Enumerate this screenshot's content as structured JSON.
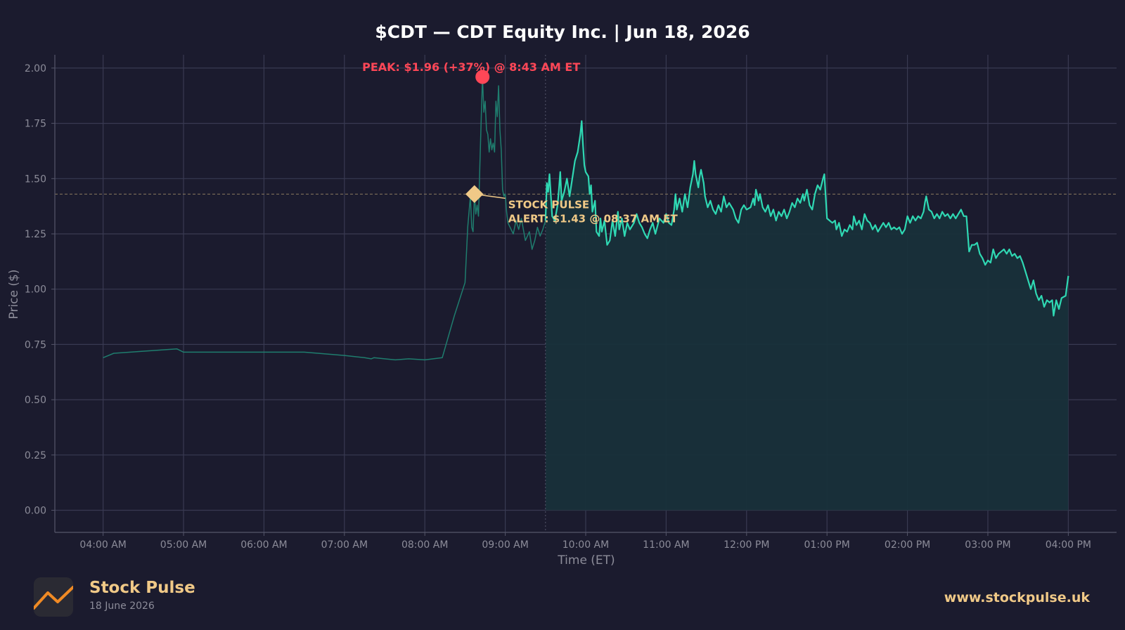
{
  "chart_data": {
    "type": "line",
    "title": "$CDT — CDT Equity Inc.  |  Jun 18, 2026",
    "xlabel": "Time (ET)",
    "ylabel": "Price ($)",
    "ylim": [
      -0.1,
      2.06
    ],
    "yticks": [
      0.0,
      0.25,
      0.5,
      0.75,
      1.0,
      1.25,
      1.5,
      1.75,
      2.0
    ],
    "ytick_labels": [
      "0.00",
      "0.25",
      "0.50",
      "0.75",
      "1.00",
      "1.25",
      "1.50",
      "1.75",
      "2.00"
    ],
    "xticks": [
      "04:00",
      "05:00",
      "06:00",
      "07:00",
      "08:00",
      "09:00",
      "10:00",
      "11:00",
      "12:00",
      "13:00",
      "14:00",
      "15:00",
      "16:00"
    ],
    "xtick_labels": [
      "04:00 AM",
      "05:00 AM",
      "06:00 AM",
      "07:00 AM",
      "08:00 AM",
      "09:00 AM",
      "10:00 AM",
      "11:00 AM",
      "12:00 PM",
      "01:00 PM",
      "02:00 PM",
      "03:00 PM",
      "04:00 PM"
    ],
    "xlim": [
      "03:24",
      "16:36"
    ],
    "grid": true,
    "market_open": "09:30",
    "series": [
      {
        "segment": "premarket",
        "color": "#1f7d6e",
        "points": [
          [
            "04:00",
            0.69
          ],
          [
            "04:08",
            0.71
          ],
          [
            "04:55",
            0.73
          ],
          [
            "05:00",
            0.715
          ],
          [
            "05:30",
            0.715
          ],
          [
            "06:00",
            0.715
          ],
          [
            "06:30",
            0.715
          ],
          [
            "07:00",
            0.7
          ],
          [
            "07:15",
            0.69
          ],
          [
            "07:20",
            0.685
          ],
          [
            "07:22",
            0.69
          ],
          [
            "07:30",
            0.685
          ],
          [
            "07:38",
            0.68
          ],
          [
            "07:48",
            0.685
          ],
          [
            "08:00",
            0.68
          ],
          [
            "08:13",
            0.69
          ],
          [
            "08:22",
            0.88
          ],
          [
            "08:30",
            1.03
          ],
          [
            "08:32",
            1.28
          ],
          [
            "08:34",
            1.42
          ],
          [
            "08:35",
            1.28
          ],
          [
            "08:36",
            1.26
          ],
          [
            "08:37",
            1.43
          ],
          [
            "08:38",
            1.34
          ],
          [
            "08:39",
            1.38
          ],
          [
            "08:40",
            1.33
          ],
          [
            "08:41",
            1.55
          ],
          [
            "08:42",
            1.76
          ],
          [
            "08:43",
            1.96
          ],
          [
            "08:44",
            1.8
          ],
          [
            "08:45",
            1.85
          ],
          [
            "08:46",
            1.72
          ],
          [
            "08:47",
            1.7
          ],
          [
            "08:48",
            1.62
          ],
          [
            "08:49",
            1.68
          ],
          [
            "08:50",
            1.63
          ],
          [
            "08:51",
            1.66
          ],
          [
            "08:52",
            1.62
          ],
          [
            "08:53",
            1.85
          ],
          [
            "08:54",
            1.78
          ],
          [
            "08:55",
            1.92
          ],
          [
            "08:56",
            1.72
          ],
          [
            "08:57",
            1.63
          ],
          [
            "08:58",
            1.45
          ],
          [
            "08:59",
            1.42
          ],
          [
            "09:00",
            1.43
          ],
          [
            "09:01",
            1.35
          ],
          [
            "09:02",
            1.3
          ],
          [
            "09:06",
            1.25
          ],
          [
            "09:08",
            1.31
          ],
          [
            "09:10",
            1.27
          ],
          [
            "09:12",
            1.32
          ],
          [
            "09:15",
            1.22
          ],
          [
            "09:18",
            1.26
          ],
          [
            "09:20",
            1.18
          ],
          [
            "09:22",
            1.22
          ],
          [
            "09:24",
            1.28
          ],
          [
            "09:26",
            1.24
          ],
          [
            "09:28",
            1.27
          ],
          [
            "09:30",
            1.31
          ]
        ]
      },
      {
        "segment": "regular",
        "color": "#2fd8b3",
        "points": [
          [
            "09:30",
            1.31
          ],
          [
            "09:31",
            1.48
          ],
          [
            "09:32",
            1.44
          ],
          [
            "09:33",
            1.52
          ],
          [
            "09:35",
            1.33
          ],
          [
            "09:37",
            1.31
          ],
          [
            "09:39",
            1.38
          ],
          [
            "09:40",
            1.45
          ],
          [
            "09:41",
            1.53
          ],
          [
            "09:42",
            1.4
          ],
          [
            "09:44",
            1.44
          ],
          [
            "09:46",
            1.5
          ],
          [
            "09:48",
            1.42
          ],
          [
            "09:50",
            1.5
          ],
          [
            "09:52",
            1.58
          ],
          [
            "09:54",
            1.62
          ],
          [
            "09:56",
            1.7
          ],
          [
            "09:57",
            1.76
          ],
          [
            "09:58",
            1.65
          ],
          [
            "09:59",
            1.56
          ],
          [
            "10:00",
            1.53
          ],
          [
            "10:02",
            1.51
          ],
          [
            "10:03",
            1.43
          ],
          [
            "10:04",
            1.47
          ],
          [
            "10:05",
            1.35
          ],
          [
            "10:07",
            1.4
          ],
          [
            "10:08",
            1.26
          ],
          [
            "10:10",
            1.24
          ],
          [
            "10:11",
            1.32
          ],
          [
            "10:12",
            1.26
          ],
          [
            "10:14",
            1.31
          ],
          [
            "10:16",
            1.2
          ],
          [
            "10:18",
            1.22
          ],
          [
            "10:20",
            1.31
          ],
          [
            "10:22",
            1.24
          ],
          [
            "10:24",
            1.35
          ],
          [
            "10:25",
            1.27
          ],
          [
            "10:27",
            1.32
          ],
          [
            "10:29",
            1.24
          ],
          [
            "10:31",
            1.3
          ],
          [
            "10:33",
            1.27
          ],
          [
            "10:36",
            1.3
          ],
          [
            "10:38",
            1.34
          ],
          [
            "10:40",
            1.3
          ],
          [
            "10:42",
            1.28
          ],
          [
            "10:44",
            1.25
          ],
          [
            "10:46",
            1.23
          ],
          [
            "10:48",
            1.27
          ],
          [
            "10:50",
            1.3
          ],
          [
            "10:52",
            1.25
          ],
          [
            "10:55",
            1.32
          ],
          [
            "10:58",
            1.3
          ],
          [
            "11:00",
            1.34
          ],
          [
            "11:02",
            1.3
          ],
          [
            "11:04",
            1.29
          ],
          [
            "11:06",
            1.36
          ],
          [
            "11:07",
            1.43
          ],
          [
            "11:08",
            1.36
          ],
          [
            "11:10",
            1.41
          ],
          [
            "11:12",
            1.35
          ],
          [
            "11:14",
            1.43
          ],
          [
            "11:16",
            1.37
          ],
          [
            "11:18",
            1.46
          ],
          [
            "11:20",
            1.52
          ],
          [
            "11:21",
            1.58
          ],
          [
            "11:22",
            1.52
          ],
          [
            "11:24",
            1.46
          ],
          [
            "11:25",
            1.51
          ],
          [
            "11:26",
            1.54
          ],
          [
            "11:28",
            1.48
          ],
          [
            "11:29",
            1.42
          ],
          [
            "11:31",
            1.37
          ],
          [
            "11:33",
            1.4
          ],
          [
            "11:35",
            1.36
          ],
          [
            "11:37",
            1.34
          ],
          [
            "11:39",
            1.38
          ],
          [
            "11:41",
            1.35
          ],
          [
            "11:43",
            1.42
          ],
          [
            "11:45",
            1.37
          ],
          [
            "11:47",
            1.39
          ],
          [
            "11:50",
            1.36
          ],
          [
            "11:52",
            1.32
          ],
          [
            "11:54",
            1.3
          ],
          [
            "11:56",
            1.36
          ],
          [
            "11:58",
            1.38
          ],
          [
            "12:00",
            1.36
          ],
          [
            "12:03",
            1.37
          ],
          [
            "12:05",
            1.41
          ],
          [
            "12:06",
            1.38
          ],
          [
            "12:07",
            1.45
          ],
          [
            "12:09",
            1.4
          ],
          [
            "12:10",
            1.43
          ],
          [
            "12:12",
            1.37
          ],
          [
            "12:14",
            1.35
          ],
          [
            "12:16",
            1.38
          ],
          [
            "12:18",
            1.33
          ],
          [
            "12:20",
            1.36
          ],
          [
            "12:22",
            1.31
          ],
          [
            "12:24",
            1.35
          ],
          [
            "12:26",
            1.33
          ],
          [
            "12:28",
            1.36
          ],
          [
            "12:30",
            1.32
          ],
          [
            "12:32",
            1.35
          ],
          [
            "12:34",
            1.39
          ],
          [
            "12:36",
            1.37
          ],
          [
            "12:38",
            1.41
          ],
          [
            "12:40",
            1.39
          ],
          [
            "12:42",
            1.43
          ],
          [
            "12:43",
            1.4
          ],
          [
            "12:45",
            1.45
          ],
          [
            "12:47",
            1.38
          ],
          [
            "12:49",
            1.36
          ],
          [
            "12:51",
            1.43
          ],
          [
            "12:53",
            1.47
          ],
          [
            "12:55",
            1.45
          ],
          [
            "12:57",
            1.5
          ],
          [
            "12:58",
            1.52
          ],
          [
            "13:00",
            1.32
          ],
          [
            "13:02",
            1.31
          ],
          [
            "13:04",
            1.3
          ],
          [
            "13:06",
            1.31
          ],
          [
            "13:07",
            1.27
          ],
          [
            "13:09",
            1.3
          ],
          [
            "13:11",
            1.24
          ],
          [
            "13:13",
            1.27
          ],
          [
            "13:15",
            1.26
          ],
          [
            "13:17",
            1.29
          ],
          [
            "13:19",
            1.27
          ],
          [
            "13:20",
            1.33
          ],
          [
            "13:22",
            1.29
          ],
          [
            "13:24",
            1.31
          ],
          [
            "13:26",
            1.27
          ],
          [
            "13:28",
            1.34
          ],
          [
            "13:30",
            1.31
          ],
          [
            "13:32",
            1.3
          ],
          [
            "13:34",
            1.27
          ],
          [
            "13:36",
            1.29
          ],
          [
            "13:38",
            1.26
          ],
          [
            "13:40",
            1.28
          ],
          [
            "13:42",
            1.3
          ],
          [
            "13:44",
            1.28
          ],
          [
            "13:46",
            1.3
          ],
          [
            "13:48",
            1.27
          ],
          [
            "13:50",
            1.28
          ],
          [
            "13:52",
            1.27
          ],
          [
            "13:54",
            1.28
          ],
          [
            "13:56",
            1.25
          ],
          [
            "13:58",
            1.27
          ],
          [
            "14:00",
            1.33
          ],
          [
            "14:02",
            1.3
          ],
          [
            "14:04",
            1.33
          ],
          [
            "14:06",
            1.31
          ],
          [
            "14:08",
            1.33
          ],
          [
            "14:10",
            1.32
          ],
          [
            "14:12",
            1.35
          ],
          [
            "14:13",
            1.39
          ],
          [
            "14:14",
            1.42
          ],
          [
            "14:16",
            1.36
          ],
          [
            "14:18",
            1.35
          ],
          [
            "14:20",
            1.32
          ],
          [
            "14:22",
            1.34
          ],
          [
            "14:24",
            1.32
          ],
          [
            "14:26",
            1.35
          ],
          [
            "14:28",
            1.33
          ],
          [
            "14:30",
            1.34
          ],
          [
            "14:32",
            1.32
          ],
          [
            "14:34",
            1.34
          ],
          [
            "14:36",
            1.32
          ],
          [
            "14:38",
            1.34
          ],
          [
            "14:40",
            1.36
          ],
          [
            "14:42",
            1.33
          ],
          [
            "14:44",
            1.33
          ],
          [
            "14:46",
            1.17
          ],
          [
            "14:48",
            1.2
          ],
          [
            "14:50",
            1.2
          ],
          [
            "14:52",
            1.21
          ],
          [
            "14:54",
            1.16
          ],
          [
            "14:56",
            1.14
          ],
          [
            "14:58",
            1.11
          ],
          [
            "15:00",
            1.13
          ],
          [
            "15:02",
            1.12
          ],
          [
            "15:04",
            1.18
          ],
          [
            "15:06",
            1.14
          ],
          [
            "15:08",
            1.16
          ],
          [
            "15:10",
            1.17
          ],
          [
            "15:12",
            1.18
          ],
          [
            "15:14",
            1.16
          ],
          [
            "15:16",
            1.18
          ],
          [
            "15:18",
            1.15
          ],
          [
            "15:20",
            1.16
          ],
          [
            "15:22",
            1.14
          ],
          [
            "15:24",
            1.15
          ],
          [
            "15:26",
            1.12
          ],
          [
            "15:28",
            1.08
          ],
          [
            "15:30",
            1.04
          ],
          [
            "15:32",
            1.0
          ],
          [
            "15:34",
            1.04
          ],
          [
            "15:36",
            0.98
          ],
          [
            "15:38",
            0.95
          ],
          [
            "15:40",
            0.97
          ],
          [
            "15:42",
            0.92
          ],
          [
            "15:44",
            0.95
          ],
          [
            "15:46",
            0.94
          ],
          [
            "15:48",
            0.95
          ],
          [
            "15:49",
            0.88
          ],
          [
            "15:51",
            0.95
          ],
          [
            "15:53",
            0.91
          ],
          [
            "15:55",
            0.96
          ],
          [
            "15:58",
            0.97
          ],
          [
            "16:00",
            1.06
          ]
        ]
      }
    ],
    "annotations": {
      "peak": {
        "time": "08:43",
        "price": 1.96,
        "label": "PEAK: $1.96 (+37%) @ 8:43 AM ET",
        "color": "#ff4757"
      },
      "alert": {
        "time": "08:37",
        "price": 1.43,
        "line1": "STOCK PULSE",
        "line2": "ALERT: $1.43 @ 08:37 AM ET",
        "color": "#f0c987"
      },
      "alert_reference_line": 1.43
    }
  },
  "colors": {
    "background": "#1b1b2e",
    "grid": "#393a52",
    "regular_line": "#2fd8b3",
    "premarket_line": "#1f7d6e",
    "fill": "#18303a",
    "brand": "#f0c987",
    "logo_line": "#f08a24"
  },
  "footer": {
    "brand_name": "Stock Pulse",
    "date": "18 June 2026",
    "url": "www.stockpulse.uk",
    "logo_icon": "trend-line-icon"
  }
}
